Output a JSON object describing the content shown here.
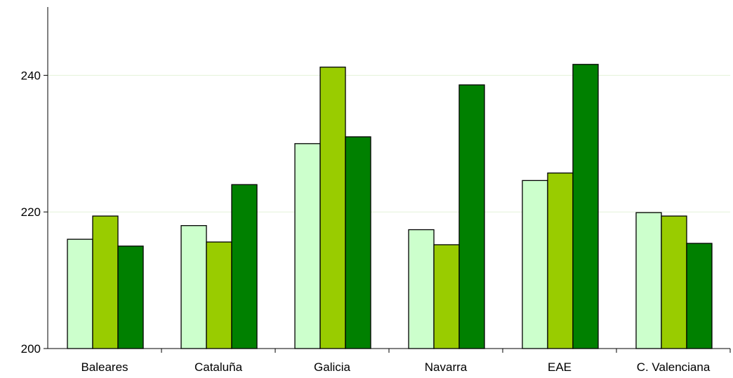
{
  "chart_data": {
    "type": "bar",
    "title": "",
    "xlabel": "",
    "ylabel": "",
    "categories": [
      "Baleares",
      "Cataluña",
      "Galicia",
      "Navarra",
      "EAE",
      "C. Valenciana"
    ],
    "series": [
      {
        "values": [
          216.0,
          218.0,
          230.0,
          217.4,
          224.6,
          219.9
        ],
        "color": "#ccffcc"
      },
      {
        "values": [
          219.4,
          215.6,
          241.2,
          215.2,
          225.7,
          219.4
        ],
        "color": "#99cc00"
      },
      {
        "values": [
          215.0,
          224.0,
          231.0,
          238.6,
          241.6,
          215.4
        ],
        "color": "#008000"
      }
    ],
    "ylim": [
      200,
      250
    ],
    "yticks": [
      200,
      220,
      240
    ],
    "ytick_labels": [
      "200",
      "220",
      "240"
    ],
    "grid": true,
    "legend": "none",
    "gridline_color": "#e3f2d8",
    "axis_color": "#000000"
  }
}
